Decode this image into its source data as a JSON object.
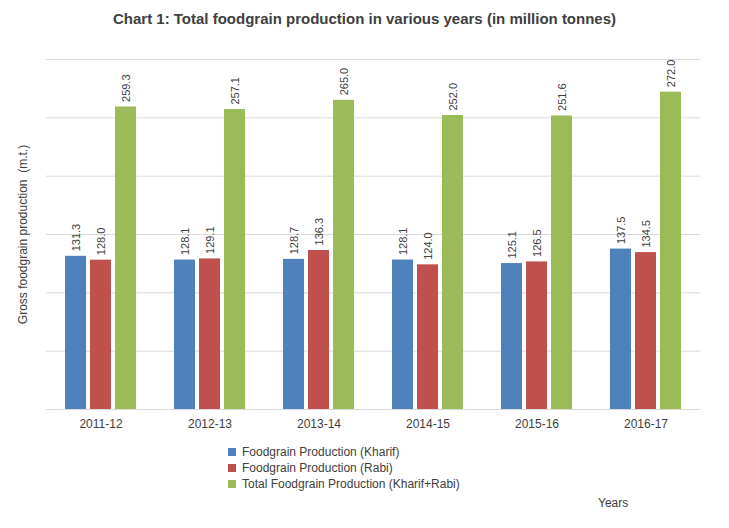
{
  "chart_data": {
    "type": "bar",
    "title": "Chart 1: Total foodgrain production in various years (in million tonnes)",
    "y_label": "Gross foodgrain production  (m.t.)",
    "x_label": "Years",
    "categories": [
      "2011-12",
      "2012-13",
      "2013-14",
      "2014-15",
      "2015-16",
      "2016-17"
    ],
    "series": [
      {
        "name": "Foodgrain Production (Kharif)",
        "color": "#4f81bd",
        "values": [
          131.3,
          128.1,
          128.7,
          128.1,
          125.1,
          137.5
        ],
        "value_labels": [
          "131.3",
          "128.1",
          "128.7",
          "128.1",
          "125.1",
          "137.5"
        ]
      },
      {
        "name": "Foodgrain Production (Rabi)",
        "color": "#c0504d",
        "values": [
          128.0,
          129.1,
          136.3,
          124.0,
          126.5,
          134.5
        ],
        "value_labels": [
          "128.0",
          "129.1",
          "136.3",
          "124.0",
          "126.5",
          "134.5"
        ]
      },
      {
        "name": "Total Foodgrain Production (Kharif+Rabi)",
        "color": "#9bbb59",
        "values": [
          259.3,
          257.1,
          265.0,
          252.0,
          251.6,
          272.0
        ],
        "value_labels": [
          "259.3",
          "257.1",
          "265.0",
          "252.0",
          "251.6",
          "272.0"
        ]
      }
    ],
    "ylim": [
      0,
      300
    ],
    "yticks": [
      0,
      50,
      100,
      150,
      200,
      250,
      300
    ],
    "grid": true,
    "data_labels": true,
    "tick_labels": "x",
    "legend": "bottom"
  }
}
